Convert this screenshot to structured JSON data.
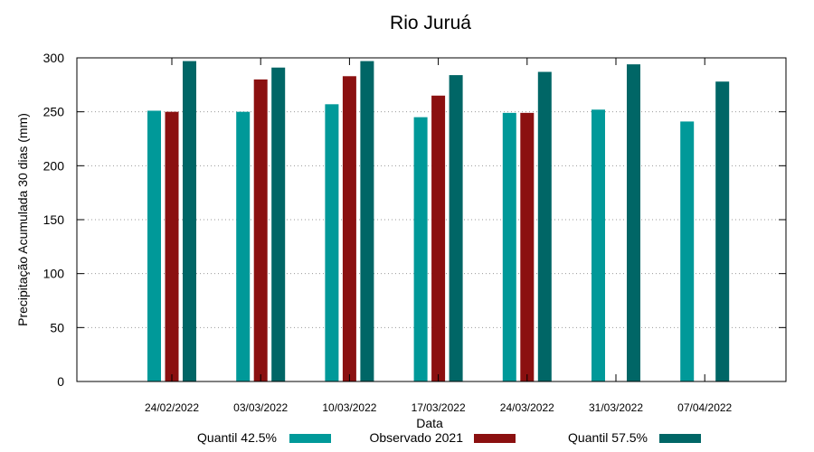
{
  "chart_data": {
    "type": "bar",
    "title": "Rio Juruá",
    "xlabel": "Data",
    "ylabel": "Precipitação Acumulada 30 dias (mm)",
    "ylim": [
      0,
      300
    ],
    "yticks": [
      0,
      50,
      100,
      150,
      200,
      250,
      300
    ],
    "grid": true,
    "legend_position": "bottom",
    "categories": [
      "24/02/2022",
      "03/03/2022",
      "10/03/2022",
      "17/03/2022",
      "24/03/2022",
      "31/03/2022",
      "07/04/2022"
    ],
    "series": [
      {
        "name": "Quantil 42.5%",
        "color": "#009999",
        "values": [
          251,
          250,
          257,
          245,
          249,
          252,
          241
        ]
      },
      {
        "name": "Observado 2021",
        "color": "#8b1010",
        "values": [
          250,
          280,
          283,
          265,
          249,
          null,
          null
        ]
      },
      {
        "name": "Quantil 57.5%",
        "color": "#006666",
        "values": [
          297,
          291,
          297,
          284,
          287,
          294,
          278
        ]
      }
    ]
  }
}
